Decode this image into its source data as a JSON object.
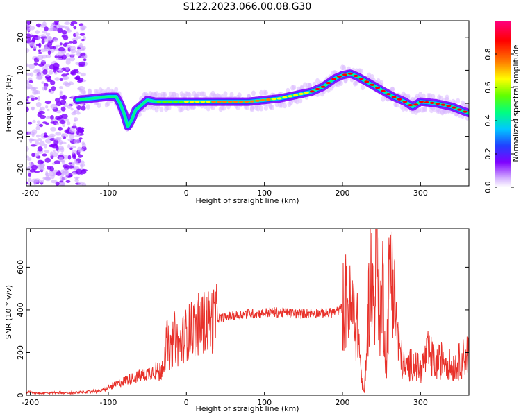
{
  "title": "S122.2023.066.00.08.G30",
  "chart_data": [
    {
      "type": "heatmap",
      "xlabel": "Height of straight line (km)",
      "ylabel": "Frequency (Hz)",
      "xlim": [
        -205,
        362
      ],
      "ylim": [
        -25,
        25
      ],
      "x_ticks": [
        -200,
        -100,
        0,
        100,
        200,
        300
      ],
      "y_ticks": [
        20,
        10,
        0,
        -10,
        -20
      ],
      "colorbar": {
        "label": "Normalized spectral amplitude",
        "range": [
          0,
          1
        ],
        "ticks": [
          0.0,
          0.2,
          0.4,
          0.6,
          0.8
        ],
        "tick_labels": [
          "0.0",
          "0.2",
          "0.4",
          "0.6",
          "0.8"
        ],
        "colors": [
          "#ffffff",
          "#d8b8ff",
          "#7f00ff",
          "#2040ff",
          "#00c8ff",
          "#00ff80",
          "#60ff00",
          "#ffff00",
          "#ff8000",
          "#ff0000",
          "#ff0080"
        ]
      },
      "ridge": {
        "x": [
          -140,
          -120,
          -100,
          -90,
          -85,
          -80,
          -75,
          -70,
          -65,
          -60,
          -50,
          -40,
          -30,
          -20,
          0,
          20,
          50,
          80,
          100,
          120,
          140,
          160,
          175,
          190,
          200,
          210,
          220,
          235,
          250,
          265,
          280,
          290,
          300,
          320,
          340,
          362
        ],
        "y": [
          1,
          1.5,
          2,
          2,
          0,
          -3,
          -7,
          -5,
          -2,
          -1,
          1,
          0.5,
          0.5,
          0.5,
          0.5,
          0.5,
          0.5,
          0.5,
          1,
          1.5,
          2.5,
          3.5,
          5,
          7.5,
          8.5,
          9,
          8,
          6,
          4,
          2,
          0.5,
          -1,
          0.5,
          0,
          -1,
          -3
        ]
      },
      "noise_region_x": [
        -205,
        -130
      ]
    },
    {
      "type": "line",
      "xlabel": "Height of straight line (km)",
      "ylabel": "SNR (10 * v/v)",
      "xlim": [
        -205,
        362
      ],
      "ylim": [
        0,
        780
      ],
      "x_ticks": [
        -200,
        -100,
        0,
        100,
        200,
        300
      ],
      "y_ticks": [
        0,
        200,
        400,
        600
      ],
      "color": "#e8312a",
      "series": [
        {
          "x": [
            -205,
            -190,
            -170,
            -150,
            -130,
            -110,
            -100,
            -90,
            -80,
            -70,
            -60,
            -50,
            -40,
            -35,
            -30,
            -25,
            -20,
            -15,
            -10,
            0,
            10,
            20,
            30,
            40,
            50,
            60,
            70,
            80,
            90,
            100,
            110,
            120,
            130,
            140,
            150,
            160,
            170,
            180,
            190,
            195,
            200,
            205,
            210,
            215,
            220,
            225,
            228,
            232,
            236,
            240,
            244,
            248,
            252,
            256,
            260,
            264,
            268,
            272,
            276,
            280,
            290,
            300,
            310,
            320,
            330,
            340,
            350,
            362
          ],
          "y": [
            15,
            10,
            12,
            10,
            15,
            20,
            35,
            50,
            65,
            80,
            90,
            100,
            120,
            100,
            150,
            250,
            200,
            280,
            230,
            290,
            320,
            340,
            350,
            360,
            365,
            372,
            378,
            385,
            382,
            385,
            390,
            388,
            387,
            383,
            382,
            386,
            384,
            385,
            390,
            395,
            410,
            440,
            400,
            380,
            300,
            60,
            10,
            300,
            610,
            420,
            680,
            380,
            520,
            120,
            550,
            600,
            400,
            230,
            170,
            120,
            150,
            120,
            200,
            140,
            180,
            130,
            160,
            200
          ]
        }
      ]
    }
  ]
}
